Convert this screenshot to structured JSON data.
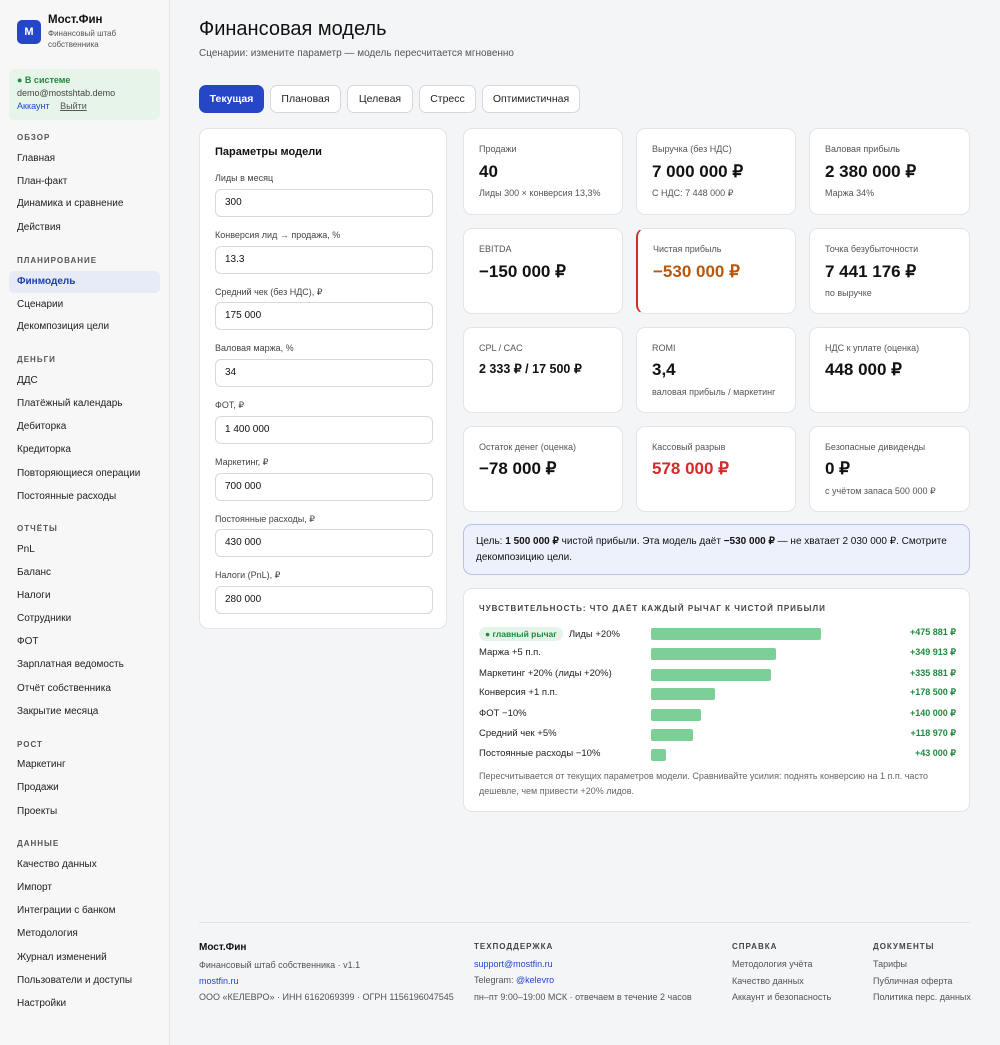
{
  "brand": {
    "logo": "M",
    "name": "Мост.Фин",
    "subtitle": "Финансовый штаб собственника"
  },
  "user": {
    "status": "● В системе",
    "email": "demo@mostshtab.demo",
    "account_link": "Аккаунт",
    "logout_link": "Выйти"
  },
  "nav": {
    "sections": [
      {
        "title": "ОБЗОР",
        "items": [
          "Главная",
          "План-факт",
          "Динамика и сравнение",
          "Действия"
        ]
      },
      {
        "title": "ПЛАНИРОВАНИЕ",
        "items": [
          "Финмодель",
          "Сценарии",
          "Декомпозиция цели"
        ]
      },
      {
        "title": "ДЕНЬГИ",
        "items": [
          "ДДС",
          "Платёжный календарь",
          "Дебиторка",
          "Кредиторка",
          "Повторяющиеся операции",
          "Постоянные расходы"
        ]
      },
      {
        "title": "ОТЧЁТЫ",
        "items": [
          "PnL",
          "Баланс",
          "Налоги",
          "Сотрудники",
          "ФОТ",
          "Зарплатная ведомость",
          "Отчёт собственника",
          "Закрытие месяца"
        ]
      },
      {
        "title": "РОСТ",
        "items": [
          "Маркетинг",
          "Продажи",
          "Проекты"
        ]
      },
      {
        "title": "ДАННЫЕ",
        "items": [
          "Качество данных",
          "Импорт",
          "Интеграции с банком",
          "Методология",
          "Журнал изменений",
          "Пользователи и доступы",
          "Настройки"
        ]
      }
    ],
    "active": "Финмодель"
  },
  "header": {
    "title": "Финансовая модель",
    "subtitle": "Сценарии: измените параметр — модель пересчитается мгновенно"
  },
  "tabs": [
    "Текущая",
    "Плановая",
    "Целевая",
    "Стресс",
    "Оптимистичная"
  ],
  "params": {
    "title": "Параметры модели",
    "fields": [
      {
        "label": "Лиды в месяц",
        "value": "300"
      },
      {
        "label": "Конверсия лид → продажа, %",
        "value": "13.3"
      },
      {
        "label": "Средний чек (без НДС), ₽",
        "value": "175 000"
      },
      {
        "label": "Валовая маржа, %",
        "value": "34"
      },
      {
        "label": "ФОТ, ₽",
        "value": "1 400 000"
      },
      {
        "label": "Маркетинг, ₽",
        "value": "700 000"
      },
      {
        "label": "Постоянные расходы, ₽",
        "value": "430 000"
      },
      {
        "label": "Налоги (PnL), ₽",
        "value": "280 000"
      }
    ]
  },
  "metrics": [
    {
      "label": "Продажи",
      "value": "40",
      "sub": "Лиды 300 × конверсия 13,3%"
    },
    {
      "label": "Выручка (без НДС)",
      "value": "7 000 000 ₽",
      "sub": "С НДС: 7 448 000 ₽"
    },
    {
      "label": "Валовая прибыль",
      "value": "2 380 000 ₽",
      "sub": "Маржа 34%"
    },
    {
      "label": "EBITDA",
      "value": "−150 000 ₽",
      "sub": ""
    },
    {
      "label": "Чистая прибыль",
      "value": "−530 000 ₽",
      "sub": ""
    },
    {
      "label": "Точка безубыточности",
      "value": "7 441 176 ₽",
      "sub": "по выручке"
    },
    {
      "label": "CPL / CAC",
      "value": "2 333 ₽ / 17 500 ₽",
      "sub": ""
    },
    {
      "label": "ROMI",
      "value": "3,4",
      "sub": "валовая прибыль / маркетинг"
    },
    {
      "label": "НДС к уплате (оценка)",
      "value": "448 000 ₽",
      "sub": ""
    },
    {
      "label": "Остаток денег (оценка)",
      "value": "−78 000 ₽",
      "sub": ""
    },
    {
      "label": "Кассовый разрыв",
      "value": "578 000 ₽",
      "sub": ""
    },
    {
      "label": "Безопасные дивиденды",
      "value": "0 ₽",
      "sub": "с учётом запаса 500 000 ₽"
    }
  ],
  "goal": {
    "p1": "Цель: ",
    "target": "1 500 000 ₽",
    "p2": " чистой прибыли. Эта модель даёт ",
    "result": "−530 000 ₽",
    "p3": " — не хватает 2 030 000 ₽. Смотрите декомпозицию цели."
  },
  "sensitivity": {
    "title": "ЧУВСТВИТЕЛЬНОСТЬ: ЧТО ДАЁТ КАЖДЫЙ РЫЧАГ К ЧИСТОЙ ПРИБЫЛИ",
    "badge": "● главный рычаг",
    "rows": [
      {
        "label": "Лиды +20%",
        "value": "+475 881 ₽",
        "amount": 475881
      },
      {
        "label": "Маржа +5 п.п.",
        "value": "+349 913 ₽",
        "amount": 349913
      },
      {
        "label": "Маркетинг +20% (лиды +20%)",
        "value": "+335 881 ₽",
        "amount": 335881
      },
      {
        "label": "Конверсия +1 п.п.",
        "value": "+178 500 ₽",
        "amount": 178500
      },
      {
        "label": "ФОТ −10%",
        "value": "+140 000 ₽",
        "amount": 140000
      },
      {
        "label": "Средний чек +5%",
        "value": "+118 970 ₽",
        "amount": 118970
      },
      {
        "label": "Постоянные расходы −10%",
        "value": "+43 000 ₽",
        "amount": 43000
      }
    ],
    "note": "Пересчитывается от текущих параметров модели. Сравнивайте усилия: поднять конверсию на 1 п.п. часто дешевле, чем привести +20% лидов."
  },
  "footer": {
    "brand": "Мост.Фин",
    "tagline": "Финансовый штаб собственника · v1.1",
    "site": "mostfin.ru",
    "legal": "ООО «КЕЛЕВРО» · ИНН 6162069399 · ОГРН 1156196047545",
    "support_title": "ТЕХПОДДЕРЖКА",
    "support_email": "support@mostfin.ru",
    "telegram_label": "Telegram: ",
    "telegram": "@kelevro",
    "hours": "пн–пт 9:00–19:00 МСК · отвечаем в течение 2 часов",
    "help_title": "СПРАВКА",
    "help_links": [
      "Методология учёта",
      "Качество данных",
      "Аккаунт и безопасность"
    ],
    "docs_title": "ДОКУМЕНТЫ",
    "docs_links": [
      "Тарифы",
      "Публичная оферта",
      "Политика перс. данных"
    ]
  }
}
